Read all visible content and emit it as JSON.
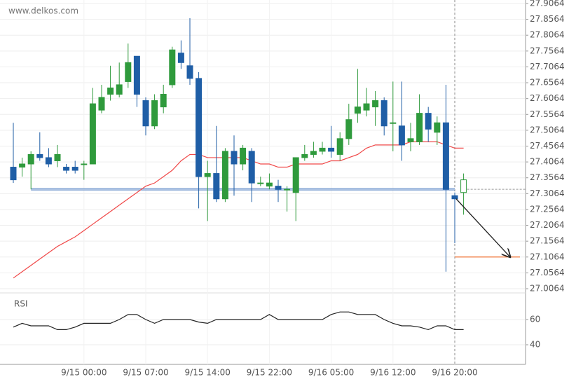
{
  "watermark": "www.delkos.com",
  "chart_data": [
    {
      "type": "candlestick",
      "categories": [
        null,
        null,
        null,
        null,
        null,
        null,
        null,
        null,
        "9/15 00:00",
        null,
        null,
        null,
        null,
        null,
        null,
        "9/15 07:00",
        null,
        null,
        null,
        null,
        null,
        null,
        "9/15 14:00",
        null,
        null,
        null,
        null,
        null,
        null,
        "9/15 22:00",
        null,
        null,
        null,
        null,
        null,
        null,
        "9/16 05:00",
        null,
        null,
        null,
        null,
        null,
        null,
        "9/16 12:00",
        null,
        null,
        null,
        null,
        null,
        null,
        "9/16 20:00",
        null
      ],
      "open": [
        27.39,
        27.39,
        27.4,
        27.43,
        27.42,
        27.41,
        27.39,
        27.39,
        27.4,
        27.4,
        27.57,
        27.62,
        27.62,
        27.66,
        27.74,
        27.6,
        27.52,
        27.58,
        27.65,
        27.75,
        27.71,
        27.67,
        27.36,
        27.37,
        27.29,
        27.44,
        27.4,
        27.44,
        27.34,
        27.33,
        27.33,
        27.32,
        27.31,
        27.42,
        27.43,
        27.44,
        27.45,
        27.43,
        27.48,
        27.56,
        27.57,
        27.58,
        27.6,
        27.53,
        27.52,
        27.47,
        27.47,
        27.56,
        27.5,
        27.53,
        27.3,
        27.31
      ],
      "high": [
        27.53,
        27.42,
        27.44,
        27.5,
        27.45,
        27.46,
        27.4,
        27.41,
        27.41,
        27.64,
        27.65,
        27.71,
        27.72,
        27.78,
        27.74,
        27.61,
        27.62,
        27.65,
        27.77,
        27.79,
        27.86,
        27.69,
        27.41,
        27.52,
        27.45,
        27.49,
        27.46,
        27.45,
        27.36,
        27.37,
        27.35,
        27.33,
        27.42,
        27.46,
        27.47,
        27.47,
        27.52,
        27.5,
        27.59,
        27.7,
        27.64,
        27.63,
        27.61,
        27.66,
        27.66,
        27.53,
        27.62,
        27.58,
        27.55,
        27.65,
        27.31,
        27.37
      ],
      "low": [
        27.34,
        27.36,
        27.32,
        27.41,
        27.39,
        27.39,
        27.37,
        27.37,
        27.35,
        27.4,
        27.56,
        27.6,
        27.61,
        27.64,
        27.58,
        27.49,
        27.51,
        27.56,
        27.64,
        27.7,
        27.65,
        27.26,
        27.22,
        27.28,
        27.28,
        27.3,
        27.38,
        27.28,
        27.33,
        27.32,
        27.28,
        27.25,
        27.22,
        27.41,
        27.42,
        27.43,
        27.42,
        27.41,
        27.46,
        27.53,
        27.55,
        27.52,
        27.49,
        27.44,
        27.41,
        27.44,
        27.46,
        27.47,
        27.46,
        27.06,
        27.15,
        27.24
      ],
      "close": [
        27.35,
        27.4,
        27.43,
        27.42,
        27.4,
        27.43,
        27.38,
        27.38,
        27.4,
        27.59,
        27.61,
        27.64,
        27.65,
        27.72,
        27.62,
        27.52,
        27.6,
        27.62,
        27.76,
        27.72,
        27.67,
        27.36,
        27.37,
        27.29,
        27.44,
        27.4,
        27.45,
        27.34,
        27.34,
        27.34,
        27.32,
        27.32,
        27.42,
        27.43,
        27.44,
        27.45,
        27.44,
        27.48,
        27.54,
        27.58,
        27.59,
        27.6,
        27.52,
        27.53,
        27.46,
        27.48,
        27.56,
        27.51,
        27.53,
        27.32,
        27.29,
        27.35
      ],
      "up_color": "#2f9a3c",
      "down_color": "#1f5ea6",
      "ma": {
        "color": "#f04848",
        "values": [
          27.04,
          27.06,
          27.08,
          27.1,
          27.12,
          27.14,
          27.155,
          27.17,
          27.19,
          27.21,
          27.23,
          27.25,
          27.27,
          27.29,
          27.31,
          27.33,
          27.34,
          27.36,
          27.38,
          27.41,
          27.43,
          27.43,
          27.42,
          27.42,
          27.42,
          27.42,
          27.42,
          27.41,
          27.4,
          27.4,
          27.39,
          27.39,
          27.4,
          27.4,
          27.4,
          27.4,
          27.41,
          27.41,
          27.42,
          27.43,
          27.45,
          27.46,
          27.46,
          27.46,
          27.46,
          27.47,
          27.47,
          27.47,
          27.47,
          27.46,
          27.45,
          27.45
        ]
      },
      "support": 27.32,
      "support_color": "#5b86c5",
      "target": 27.1064,
      "target_color": "#f07030",
      "ylim": [
        27.0064,
        27.9064
      ],
      "yticks": [
        27.9064,
        27.8564,
        27.8064,
        27.7564,
        27.7064,
        27.6564,
        27.6064,
        27.5564,
        27.5064,
        27.4564,
        27.4064,
        27.3564,
        27.3064,
        27.2564,
        27.2064,
        27.1564,
        27.1064,
        27.0564,
        27.0064
      ],
      "grid": true
    },
    {
      "type": "line",
      "title": "RSI",
      "color": "#222",
      "values": [
        54,
        57,
        55,
        55,
        55,
        52,
        52,
        54,
        57,
        57,
        57,
        57,
        60,
        64,
        64,
        60,
        57,
        60,
        60,
        60,
        60,
        58,
        57,
        60,
        60,
        60,
        60,
        60,
        60,
        64,
        60,
        60,
        60,
        60,
        60,
        60,
        64,
        66,
        66,
        64,
        64,
        64,
        60,
        57,
        55,
        55,
        54,
        52,
        55,
        55,
        52,
        52
      ],
      "ylim": [
        25,
        80
      ],
      "yticks": [
        60,
        40
      ],
      "grid": true
    }
  ]
}
